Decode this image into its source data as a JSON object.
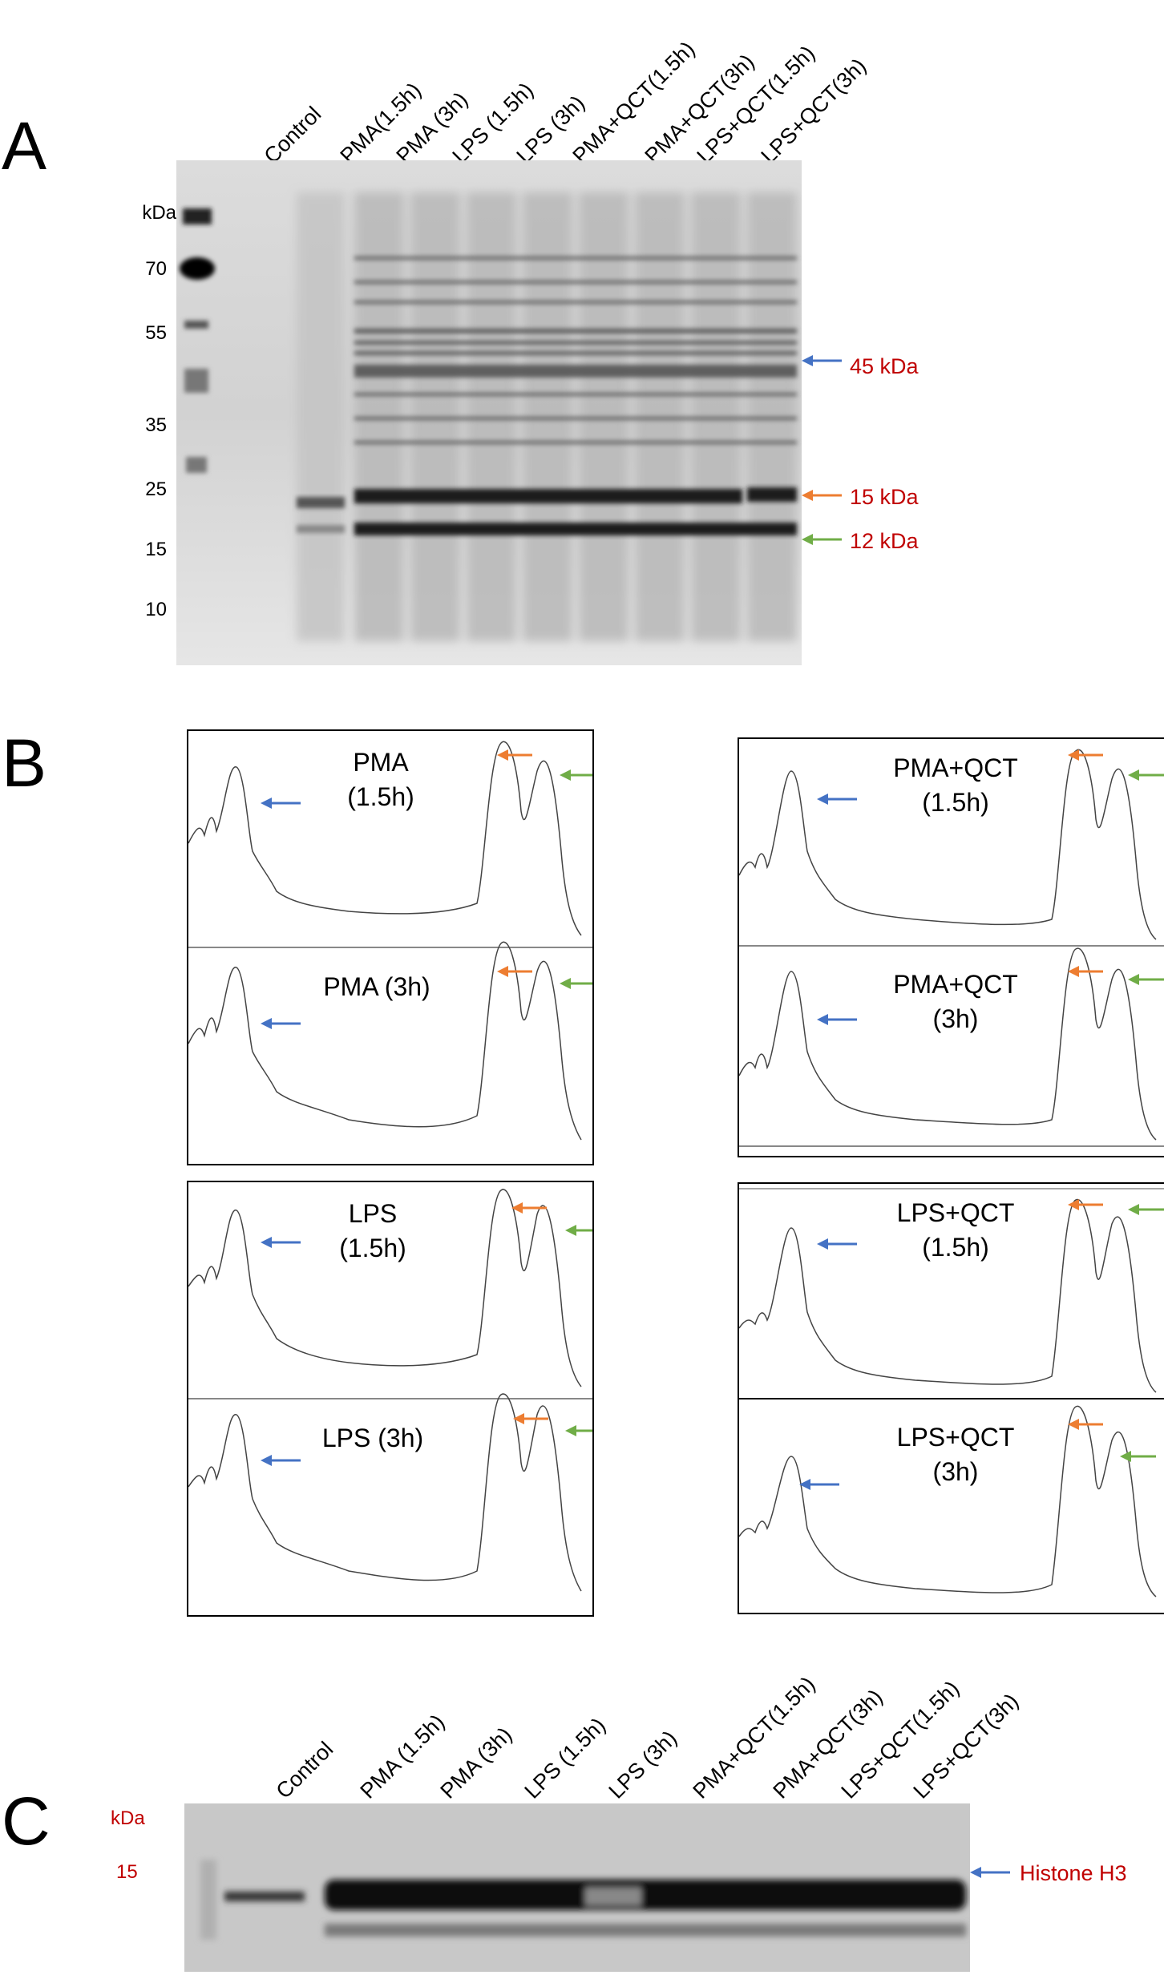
{
  "panels": {
    "a": "A",
    "b": "B",
    "c": "C"
  },
  "lanes_a": [
    "Control",
    "PMA(1.5h)",
    "PMA (3h)",
    "LPS (1.5h)",
    "LPS (3h)",
    "PMA+QCT(1.5h)",
    "PMA+QCT(3h)",
    "LPS+QCT(1.5h)",
    "LPS+QCT(3h)"
  ],
  "markers_a": [
    "kDa",
    "70",
    "55",
    "35",
    "25",
    "15",
    "10"
  ],
  "bands_a": [
    "45 kDa",
    "15 kDa",
    "12 kDa"
  ],
  "traces": [
    {
      "title": "PMA\n(1.5h)"
    },
    {
      "title": "PMA (3h)"
    },
    {
      "title": "LPS\n(1.5h)"
    },
    {
      "title": "LPS (3h)"
    },
    {
      "title": "PMA+QCT\n(1.5h)"
    },
    {
      "title": "PMA+QCT\n(3h)"
    },
    {
      "title": "LPS+QCT\n(1.5h)"
    },
    {
      "title": "LPS+QCT\n(3h)"
    }
  ],
  "lanes_c": [
    "Control",
    "PMA (1.5h)",
    "PMA (3h)",
    "LPS (1.5h)",
    "LPS (3h)",
    "PMA+QCT(1.5h)",
    "PMA+QCT(3h)",
    "LPS+QCT(1.5h)",
    "LPS+QCT(3h)"
  ],
  "markers_c": [
    "kDa",
    "15"
  ],
  "band_c": "Histone H3",
  "colors": {
    "blue": "#4472c4",
    "orange": "#ed7d31",
    "green": "#70ad47",
    "red": "#c00000"
  }
}
